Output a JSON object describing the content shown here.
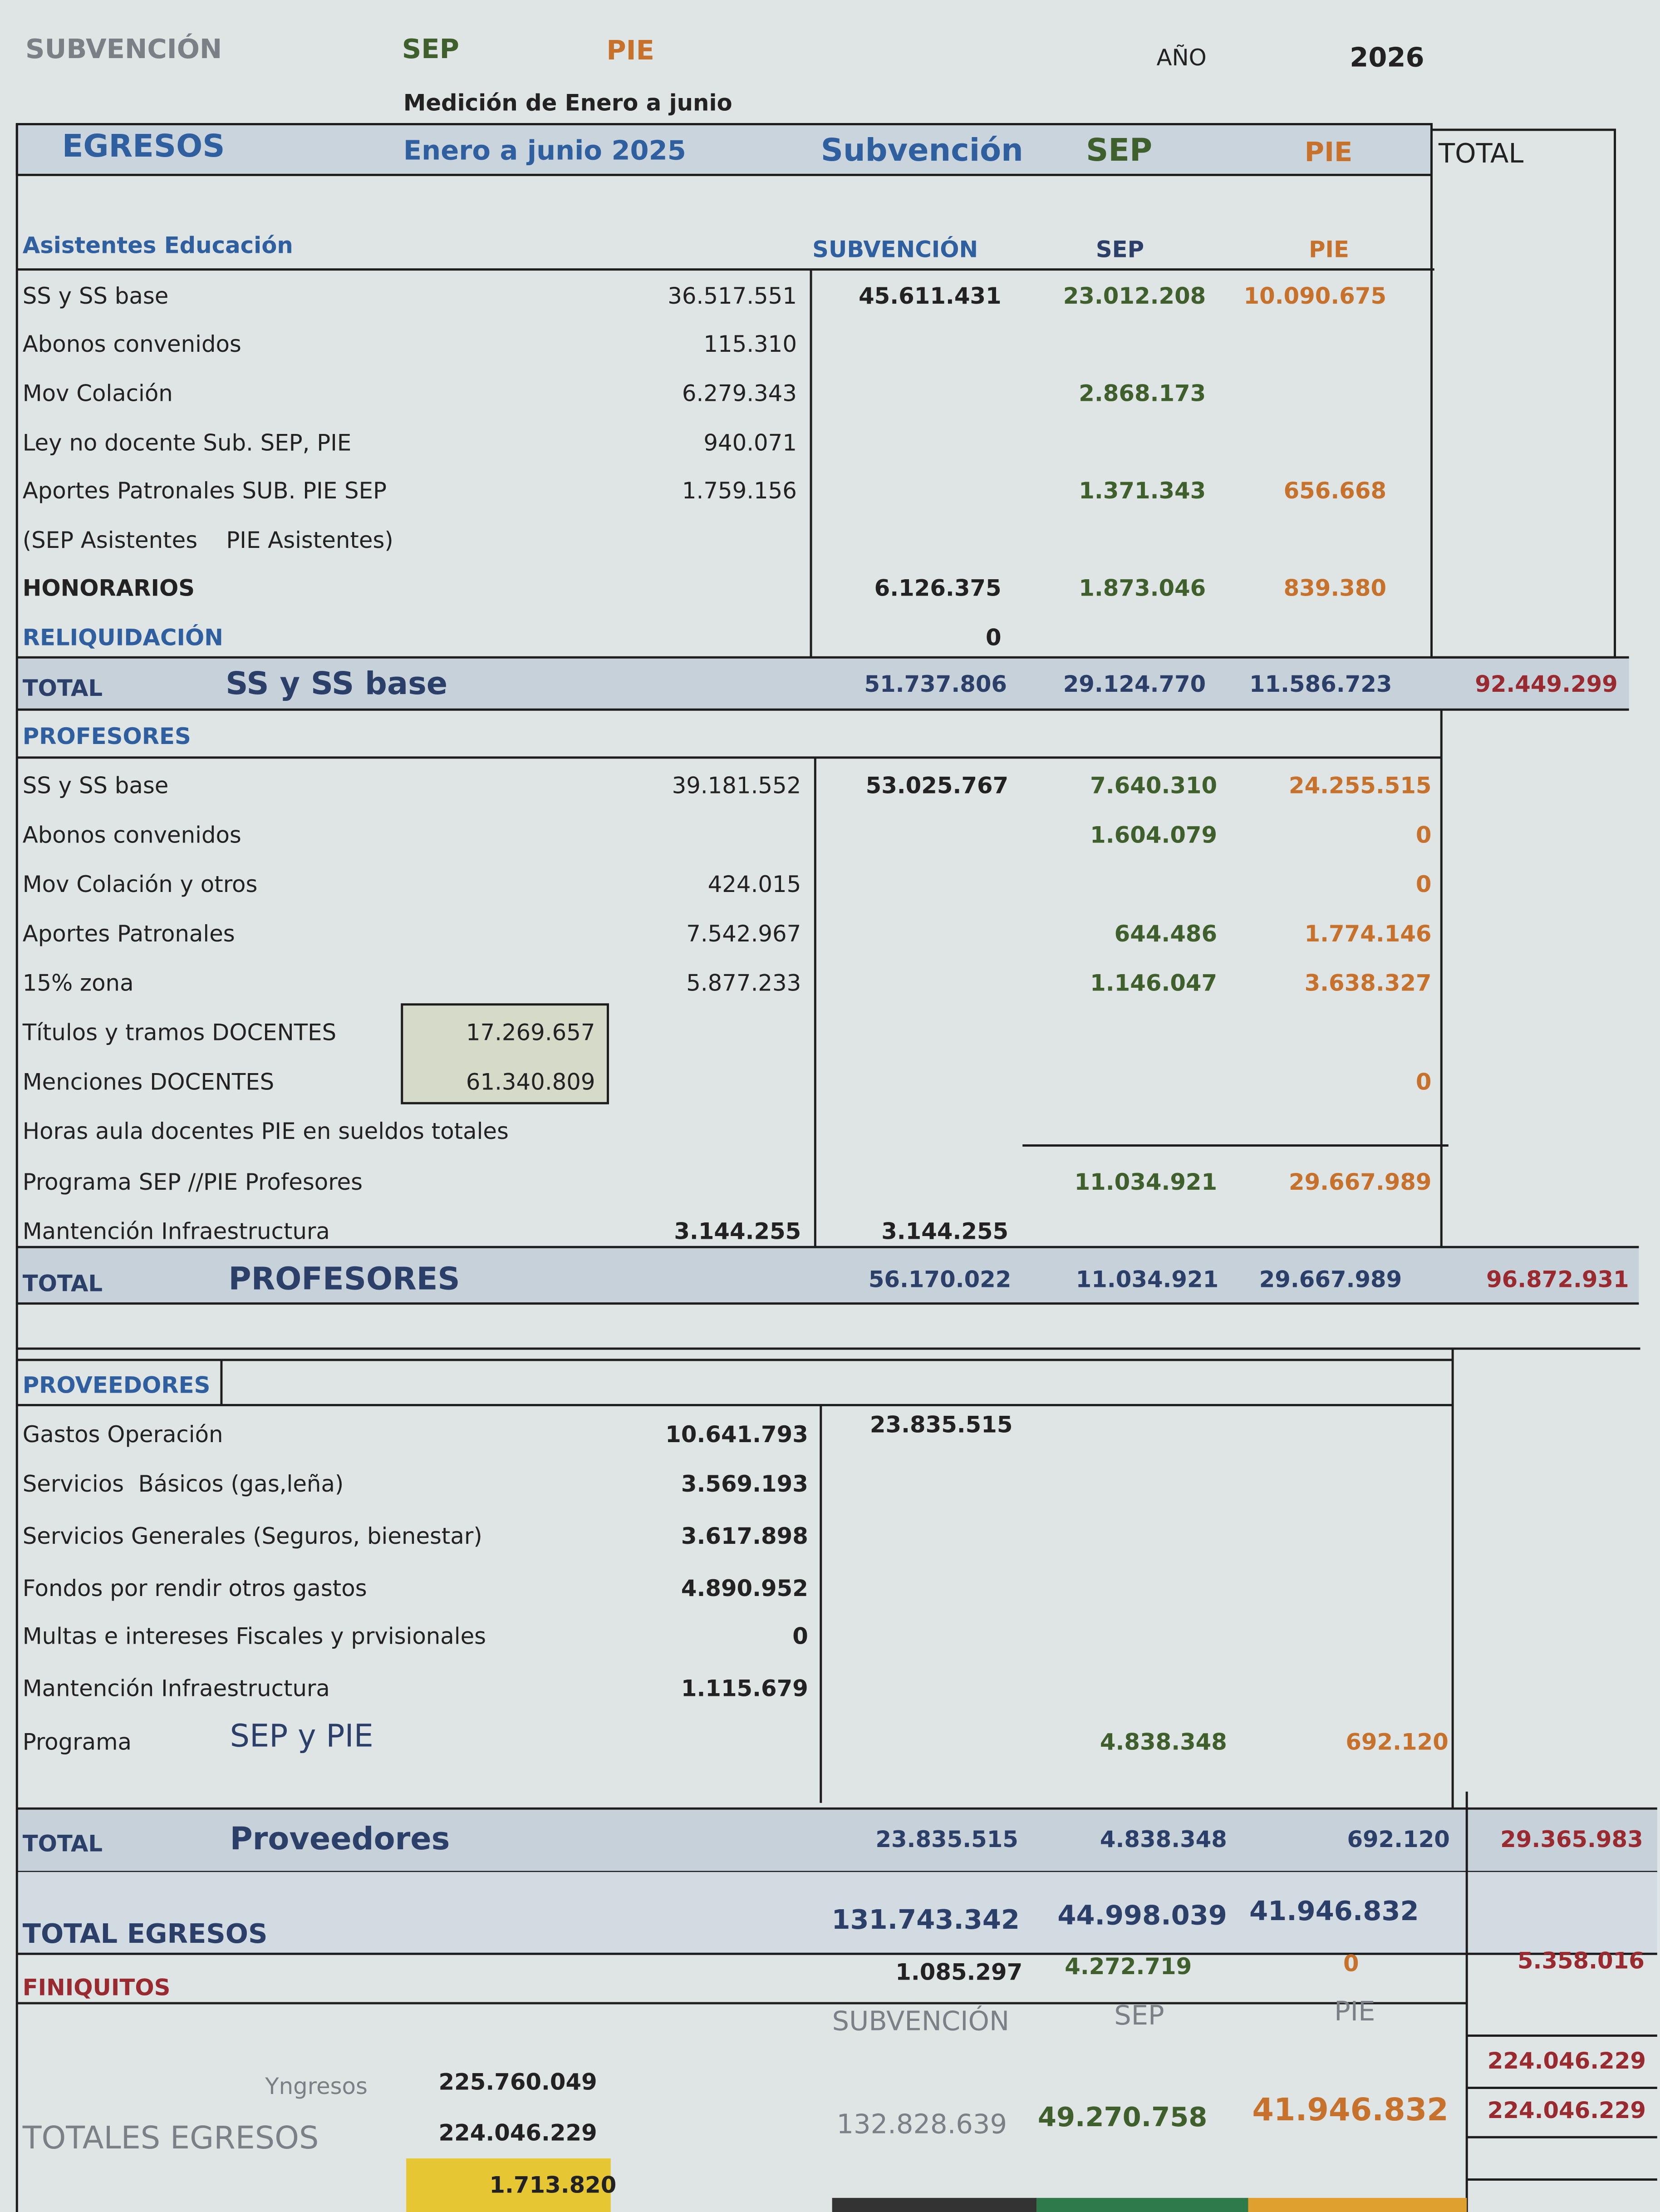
{
  "header": {
    "subvencion": "SUBVENCIÓN",
    "sep": "SEP",
    "pie": "PIE",
    "year_label": "AÑO",
    "year": "2026",
    "subtitle": "Medición de Enero a junio"
  },
  "columns": {
    "egresos": "EGRESOS",
    "period": "Enero a junio 2025",
    "subvencion": "Subvención",
    "sep": "SEP",
    "pie": "PIE",
    "total": "TOTAL"
  },
  "asistentes": {
    "title": "Asistentes Educación",
    "columns": [
      "SUBVENCIÓN",
      "SEP",
      "PIE"
    ],
    "rows": [
      {
        "label": "SS y SS base",
        "base": "36.517.551",
        "subvencion": "45.611.431",
        "sep": "23.012.208",
        "pie": "10.090.675"
      },
      {
        "label": "Abonos convenidos",
        "base": "115.310"
      },
      {
        "label": "Mov Colación",
        "base": "6.279.343",
        "sep": "2.868.173"
      },
      {
        "label": "Ley no docente Sub. SEP, PIE",
        "base": "940.071"
      },
      {
        "label": "Aportes Patronales SUB. PIE SEP",
        "base": "1.759.156",
        "sep": "1.371.343",
        "pie": "656.668"
      },
      {
        "label": "(SEP Asistentes    PIE Asistentes)"
      },
      {
        "label": "HONORARIOS",
        "subvencion": "6.126.375",
        "sep": "1.873.046",
        "pie": "839.380"
      },
      {
        "label": "RELIQUIDACIÓN",
        "subvencion": "0"
      }
    ],
    "total": {
      "label": "TOTAL",
      "name": "SS y SS base",
      "subvencion": "51.737.806",
      "sep": "29.124.770",
      "pie": "11.586.723",
      "total": "92.449.299"
    }
  },
  "profesores": {
    "title": "PROFESORES",
    "rows": [
      {
        "label": "SS y SS base",
        "base": "39.181.552",
        "subvencion": "53.025.767",
        "sep": "7.640.310",
        "pie": "24.255.515"
      },
      {
        "label": "Abonos convenidos",
        "sep": "1.604.079",
        "pie": "0"
      },
      {
        "label": "Mov Colación y otros",
        "base": "424.015",
        "pie": "0"
      },
      {
        "label": "Aportes Patronales",
        "base": "7.542.967",
        "sep": "644.486",
        "pie": "1.774.146"
      },
      {
        "label": "15% zona",
        "base": "5.877.233",
        "sep": "1.146.047",
        "pie": "3.638.327"
      },
      {
        "label": "Títulos y tramos DOCENTES",
        "box": "17.269.657"
      },
      {
        "label": "Menciones DOCENTES",
        "box": "61.340.809",
        "pie": "0"
      },
      {
        "label": "Horas aula docentes PIE en sueldos totales"
      },
      {
        "label": "Programa SEP //PIE Profesores",
        "sep": "11.034.921",
        "pie": "29.667.989"
      },
      {
        "label": "Mantención Infraestructura",
        "base": "3.144.255",
        "subvencion": "3.144.255"
      }
    ],
    "total": {
      "label": "TOTAL",
      "name": "PROFESORES",
      "subvencion": "56.170.022",
      "sep": "11.034.921",
      "pie": "29.667.989",
      "total": "96.872.931"
    }
  },
  "proveedores": {
    "title": "PROVEEDORES",
    "rows": [
      {
        "label": "Gastos Operación",
        "base": "10.641.793",
        "subvencion": "23.835.515"
      },
      {
        "label": "Servicios  Básicos (gas,leña)",
        "base": "3.569.193"
      },
      {
        "label": "Servicios Generales (Seguros, bienestar)",
        "base": "3.617.898"
      },
      {
        "label": "Fondos por rendir otros gastos",
        "base": "4.890.952"
      },
      {
        "label": "Multas e intereses Fiscales y prvisionales",
        "base": "0"
      },
      {
        "label": "Mantención Infraestructura",
        "base": "1.115.679"
      },
      {
        "label": "Programa",
        "name": "SEP y PIE",
        "sep": "4.838.348",
        "pie": "692.120"
      }
    ],
    "total": {
      "label": "TOTAL",
      "name": "Proveedores",
      "subvencion": "23.835.515",
      "sep": "4.838.348",
      "pie": "692.120",
      "total": "29.365.983"
    }
  },
  "total_egresos": {
    "label": "TOTAL EGRESOS",
    "subvencion": "131.743.342",
    "sep": "44.998.039",
    "pie": "41.946.832"
  },
  "finiquitos": {
    "label": "FINIQUITOS",
    "subvencion": "1.085.297",
    "sep": "4.272.719",
    "pie": "0",
    "total": "5.358.016"
  },
  "summary": {
    "columns": [
      "SUBVENCIÓN",
      "SEP",
      "PIE"
    ],
    "total_1": "224.046.229",
    "total_2": "224.046.229",
    "ingresos_label": "Yngresos",
    "ingresos": "225.760.049",
    "egresos_label": "TOTALES EGRESOS",
    "egresos": "224.046.229",
    "subvencion": "132.828.639",
    "sep": "49.270.758",
    "pie": "41.946.832",
    "difference": "1.713.820"
  }
}
